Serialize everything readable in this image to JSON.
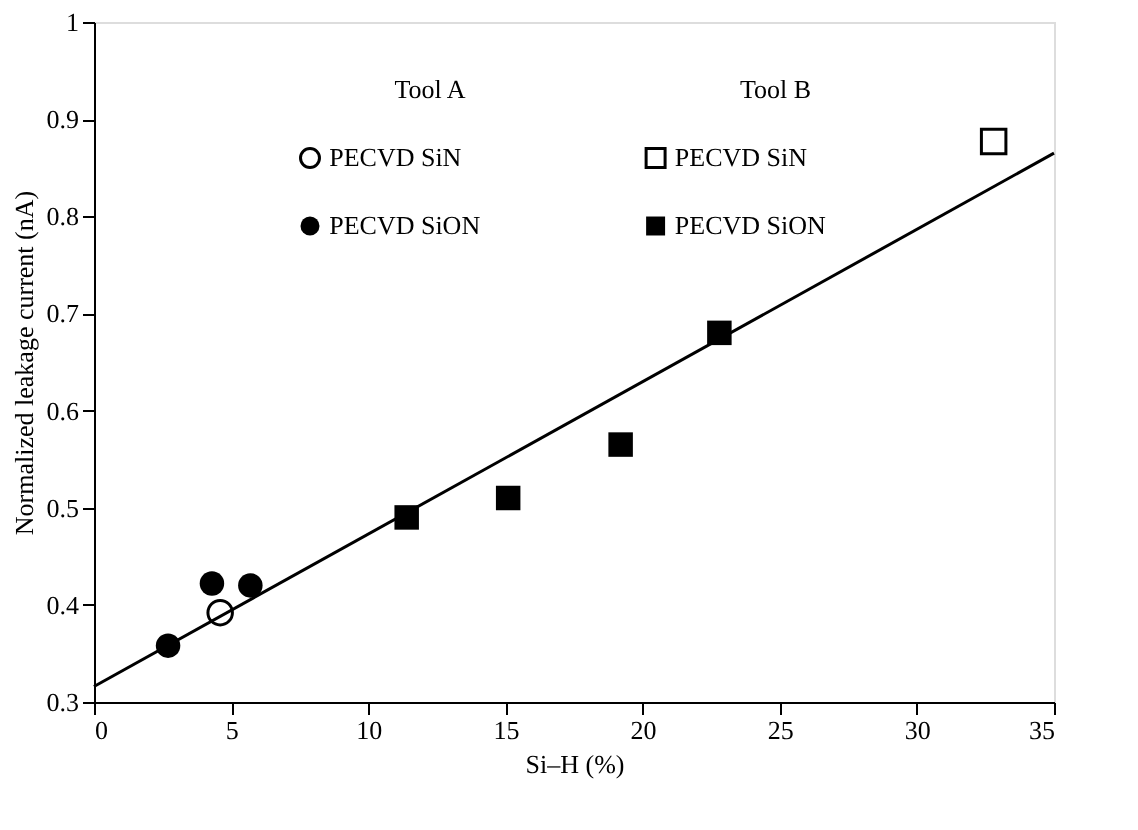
{
  "chart_data": {
    "type": "scatter",
    "xlabel": "Si–H  (%)",
    "ylabel": "Normalized leakage current  (nA)",
    "xlim": [
      0,
      35
    ],
    "xticks": [
      0,
      5,
      10,
      15,
      20,
      25,
      30,
      35
    ],
    "ylim": [
      0.3,
      1
    ],
    "yticks": [
      0.3,
      0.4,
      0.5,
      0.6,
      0.7,
      0.8,
      0.9,
      1
    ],
    "grid": false,
    "legend": "top",
    "annotations": [
      "Tool A",
      "Tool B"
    ],
    "series": [
      {
        "name": "PECVD SiN",
        "color": "#000000",
        "marker": "circle",
        "x": [
          4.6
        ],
        "values": [
          0.392
        ]
      },
      {
        "name": "PECVD SiON",
        "color": "#000000",
        "marker": "circle",
        "x": [
          2.7,
          4.3,
          5.7
        ],
        "values": [
          0.358,
          0.422,
          0.42
        ]
      },
      {
        "name": "PECVD SiN",
        "color": "#000000",
        "marker": "square",
        "x": [
          32.8
        ],
        "values": [
          0.877
        ]
      },
      {
        "name": "PECVD SiON",
        "color": "#000000",
        "marker": "square",
        "x": [
          11.4,
          15.1,
          19.2,
          22.8
        ],
        "values": [
          0.49,
          0.51,
          0.565,
          0.68
        ]
      },
      {
        "type": "line",
        "color": "#000000",
        "x": [
          0,
          35
        ],
        "values": [
          0.316,
          0.865
        ]
      }
    ]
  }
}
